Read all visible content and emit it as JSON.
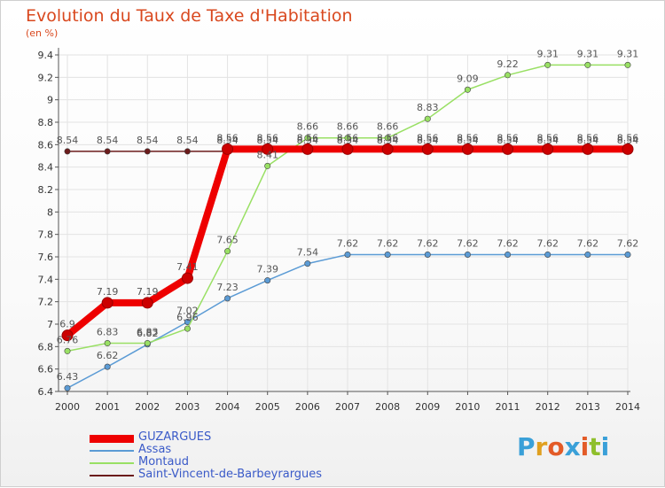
{
  "header": {
    "title": "Evolution du Taux de Taxe d'Habitation",
    "subtitle": "(en %)"
  },
  "brand": {
    "logo_text": "Proxiti",
    "logo_letters": [
      "P",
      "r",
      "o",
      "x",
      "i",
      "t",
      "i"
    ],
    "logo_colors": [
      "#3aa0d8",
      "#e0a020",
      "#e35b27",
      "#3aa0d8",
      "#e35b27",
      "#8fbf2c",
      "#3aa0d8"
    ]
  },
  "chart_data": {
    "type": "line",
    "title": "Evolution du Taux de Taxe d'Habitation",
    "ylabel": "(en %)",
    "xlabel": "",
    "x": [
      "2000",
      "2001",
      "2002",
      "2003",
      "2004",
      "2005",
      "2006",
      "2007",
      "2008",
      "2009",
      "2010",
      "2011",
      "2012",
      "2013",
      "2014"
    ],
    "ylim": [
      6.4,
      9.4
    ],
    "yticks": [
      "6.4",
      "6.6",
      "6.8",
      "7",
      "7.2",
      "7.4",
      "7.6",
      "7.8",
      "8",
      "8.2",
      "8.4",
      "8.6",
      "8.8",
      "9",
      "9.2",
      "9.4"
    ],
    "grid": true,
    "legend_position": "bottom-left",
    "series": [
      {
        "name": "Saint-Vincent-de-Barbeyrargues",
        "color": "#6b1b1b",
        "values": [
          8.54,
          8.54,
          8.54,
          8.54,
          8.54,
          8.54,
          8.54,
          8.54,
          8.54,
          8.54,
          8.54,
          8.54,
          8.54,
          8.54,
          8.54
        ],
        "labels": [
          "8.54",
          "8.54",
          "8.54",
          "8.54",
          "8.54",
          "8.54",
          "8.54",
          "8.54",
          "8.54",
          "8.54",
          "8.54",
          "8.54",
          "8.54",
          "8.54",
          "8.54"
        ]
      },
      {
        "name": "Assas",
        "color": "#5b9bd5",
        "values": [
          6.43,
          6.62,
          6.82,
          7.02,
          7.23,
          7.39,
          7.54,
          7.62,
          7.62,
          7.62,
          7.62,
          7.62,
          7.62,
          7.62,
          7.62
        ],
        "labels": [
          "6.43",
          "6.62",
          "6.82",
          "7.02",
          "7.23",
          "7.39",
          "7.54",
          "7.62",
          "7.62",
          "7.62",
          "7.62",
          "7.62",
          "7.62",
          "7.62",
          "7.62"
        ]
      },
      {
        "name": "Montaud",
        "color": "#99e064",
        "values": [
          6.76,
          6.83,
          6.83,
          6.96,
          7.65,
          8.41,
          8.66,
          8.66,
          8.66,
          8.83,
          9.09,
          9.22,
          9.31,
          9.31,
          9.31
        ],
        "labels": [
          "6.76",
          "6.83",
          "6.83",
          "6.96",
          "7.65",
          "8.41",
          "8.66",
          "8.66",
          "8.66",
          "8.83",
          "9.09",
          "9.22",
          "9.31",
          "9.31",
          "9.31"
        ]
      },
      {
        "name": "GUZARGUES",
        "color": "#ee0000",
        "values": [
          6.9,
          7.19,
          7.19,
          7.41,
          8.56,
          8.56,
          8.56,
          8.56,
          8.56,
          8.56,
          8.56,
          8.56,
          8.56,
          8.56,
          8.56
        ],
        "labels": [
          "6.9",
          "7.19",
          "7.19",
          "7.41",
          "8.56",
          "8.56",
          "8.56",
          "8.56",
          "8.56",
          "8.56",
          "8.56",
          "8.56",
          "8.56",
          "8.56",
          "8.56"
        ]
      }
    ],
    "legend": [
      "GUZARGUES",
      "Assas",
      "Montaud",
      "Saint-Vincent-de-Barbeyrargues"
    ]
  }
}
